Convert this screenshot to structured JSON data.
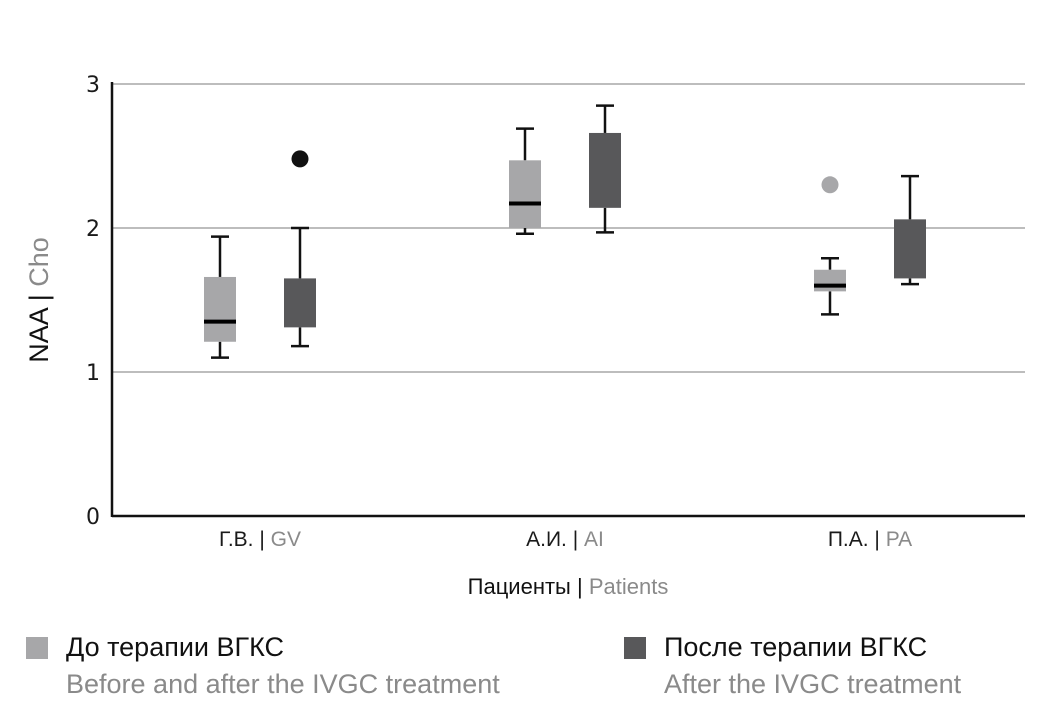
{
  "chart_data": {
    "type": "boxplot",
    "title": "",
    "ylabel_main": "NAA",
    "ylabel_sub": "Cho",
    "xlabel_main": "Пациенты",
    "xlabel_sub": "Patients",
    "ylim": [
      0,
      3
    ],
    "yticks": [
      0,
      1,
      2,
      3
    ],
    "grid": true,
    "categories": [
      {
        "main": "Г.В.",
        "sub": "GV"
      },
      {
        "main": "А.И.",
        "sub": "AI"
      },
      {
        "main": "П.А.",
        "sub": "PA"
      }
    ],
    "series": [
      {
        "name": "До терапии ВГКС",
        "name_en": "Before and after the IVGC treatment",
        "color": "#a7a7a9",
        "boxes": [
          {
            "whisker_low": 1.1,
            "q1": 1.21,
            "median": 1.35,
            "q3": 1.66,
            "whisker_high": 1.94,
            "outliers": []
          },
          {
            "whisker_low": 1.96,
            "q1": 2.0,
            "median": 2.17,
            "q3": 2.47,
            "whisker_high": 2.69,
            "outliers": []
          },
          {
            "whisker_low": 1.4,
            "q1": 1.56,
            "median": 1.6,
            "q3": 1.71,
            "whisker_high": 1.79,
            "outliers": [
              2.3
            ]
          }
        ]
      },
      {
        "name": "После терапии ВГКС",
        "name_en": "After the IVGC treatment",
        "color": "#58585a",
        "boxes": [
          {
            "whisker_low": 1.18,
            "q1": 1.31,
            "median": null,
            "q3": 1.65,
            "whisker_high": 2.0,
            "outliers": [
              2.48
            ]
          },
          {
            "whisker_low": 1.97,
            "q1": 2.14,
            "median": null,
            "q3": 2.66,
            "whisker_high": 2.85,
            "outliers": []
          },
          {
            "whisker_low": 1.61,
            "q1": 1.65,
            "median": null,
            "q3": 2.06,
            "whisker_high": 2.36,
            "outliers": []
          }
        ]
      }
    ],
    "outlier_colors": [
      "#a7a7a9",
      "#111111"
    ],
    "legend_position": "bottom"
  },
  "legend": [
    {
      "label": "До терапии ВГКС",
      "label_en": "Before and after the IVGC treatment",
      "color": "#a7a7a9"
    },
    {
      "label": "После терапии ВГКС",
      "label_en": "After the IVGC treatment",
      "color": "#58585a"
    }
  ]
}
